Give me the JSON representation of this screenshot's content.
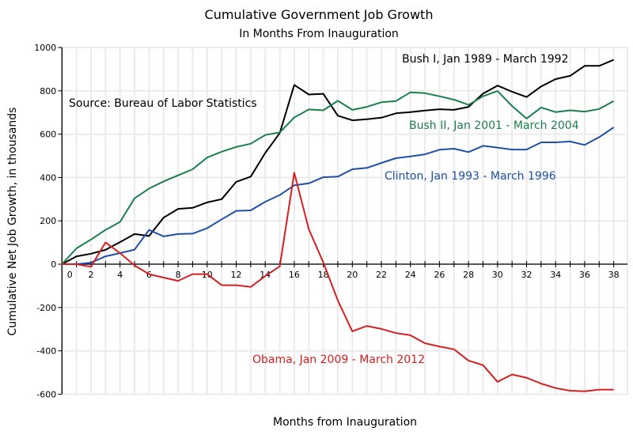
{
  "chart_data": {
    "type": "line",
    "title": "Cumulative Government Job Growth",
    "subtitle": "In Months From Inauguration",
    "xlabel": "Months from Inauguration",
    "ylabel": "Cumulative Net Job Growth, in thousands",
    "xlim": [
      0,
      39
    ],
    "ylim": [
      -600,
      1000
    ],
    "x_tick_labels": [
      "0",
      "2",
      "4",
      "6",
      "8",
      "10",
      "12",
      "14",
      "16",
      "18",
      "20",
      "22",
      "24",
      "26",
      "28",
      "30",
      "32",
      "34",
      "36",
      "38"
    ],
    "x_ticks": [
      0,
      2,
      4,
      6,
      8,
      10,
      12,
      14,
      16,
      18,
      20,
      22,
      24,
      26,
      28,
      30,
      32,
      34,
      36,
      38
    ],
    "y_ticks": [
      -600,
      -400,
      -200,
      0,
      200,
      400,
      600,
      800,
      1000
    ],
    "y_tick_labels": [
      "-600",
      "-400",
      "-200",
      "0",
      "200",
      "400",
      "600",
      "800",
      "1000"
    ],
    "grid": true,
    "legend": "none",
    "annotations": [
      {
        "text": "Source:  Bureau of Labor Statistics",
        "color": "#000000"
      }
    ],
    "x": [
      0,
      1,
      2,
      3,
      4,
      5,
      6,
      7,
      8,
      9,
      10,
      11,
      12,
      13,
      14,
      15,
      16,
      17,
      18,
      19,
      20,
      21,
      22,
      23,
      24,
      25,
      26,
      27,
      28,
      29,
      30,
      31,
      32,
      33,
      34,
      35,
      36,
      37,
      38
    ],
    "series": [
      {
        "name": "Bush I, Jan 1989 - March 1992",
        "color": "#000000",
        "values": [
          0,
          36,
          48,
          66,
          102,
          139,
          130,
          215,
          255,
          260,
          285,
          300,
          380,
          404,
          513,
          605,
          827,
          783,
          786,
          685,
          664,
          669,
          676,
          696,
          702,
          709,
          715,
          712,
          726,
          787,
          824,
          796,
          771,
          820,
          854,
          869,
          915,
          915,
          943
        ]
      },
      {
        "name": "Bush II, Jan 2001 - March 2004",
        "color": "#1a7f4b",
        "values": [
          0,
          73,
          114,
          158,
          195,
          304,
          349,
          382,
          410,
          438,
          492,
          519,
          541,
          556,
          596,
          608,
          677,
          714,
          710,
          754,
          712,
          726,
          747,
          753,
          793,
          789,
          775,
          759,
          735,
          775,
          799,
          730,
          672,
          723,
          702,
          710,
          704,
          716,
          753
        ]
      },
      {
        "name": "Clinton, Jan 1993 - March 1996",
        "color": "#1f4fa8",
        "values": [
          0,
          0,
          7,
          36,
          51,
          67,
          158,
          128,
          139,
          141,
          166,
          207,
          246,
          248,
          288,
          319,
          364,
          373,
          401,
          404,
          438,
          444,
          467,
          489,
          497,
          507,
          528,
          533,
          517,
          546,
          538,
          529,
          529,
          562,
          562,
          566,
          550,
          586,
          631
        ]
      },
      {
        "name": "Obama, Jan 2009 - March 2012",
        "color": "#d42020",
        "values": [
          0,
          0,
          -12,
          100,
          51,
          -6,
          -46,
          -62,
          -77,
          -46,
          -46,
          -97,
          -97,
          -105,
          -55,
          -10,
          422,
          161,
          8,
          -168,
          -310,
          -285,
          -299,
          -318,
          -328,
          -365,
          -380,
          -393,
          -445,
          -466,
          -543,
          -509,
          -524,
          -551,
          -572,
          -584,
          -587,
          -579,
          -579
        ]
      }
    ]
  }
}
